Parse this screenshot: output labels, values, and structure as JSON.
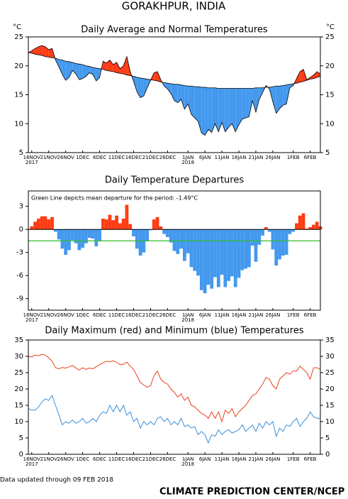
{
  "title": "GORAKHPUR, INDIA",
  "footer_left": "Data updated through 09 FEB 2018",
  "footer_right": "CLIMATE PREDICTION CENTER/NCEP",
  "chart_data": [
    {
      "type": "anomaly",
      "title": "Daily Average and Normal Temperatures",
      "y_unit": "°C",
      "categories": [
        null,
        "16NOV",
        null,
        null,
        null,
        null,
        "21NOV",
        null,
        null,
        null,
        null,
        "26NOV",
        null,
        null,
        null,
        null,
        "1DEC",
        null,
        null,
        null,
        null,
        "6DEC",
        null,
        null,
        null,
        null,
        "11DEC",
        null,
        null,
        null,
        null,
        "16DEC",
        null,
        null,
        null,
        null,
        "21DEC",
        null,
        null,
        null,
        null,
        "26DEC",
        null,
        null,
        null,
        null,
        null,
        "1JAN",
        null,
        null,
        null,
        null,
        "6JAN",
        null,
        null,
        null,
        null,
        "11JAN",
        null,
        null,
        null,
        null,
        "16JAN",
        null,
        null,
        null,
        null,
        "21JAN",
        null,
        null,
        null,
        null,
        "26JAN",
        null,
        null,
        null,
        null,
        null,
        "1FEB",
        null,
        null,
        null,
        null,
        "6FEB",
        null,
        null,
        null
      ],
      "category_years": [
        null,
        "2017",
        null,
        null,
        null,
        null,
        null,
        null,
        null,
        null,
        null,
        null,
        null,
        null,
        null,
        null,
        null,
        null,
        null,
        null,
        null,
        null,
        null,
        null,
        null,
        null,
        null,
        null,
        null,
        null,
        null,
        null,
        null,
        null,
        null,
        null,
        null,
        null,
        null,
        null,
        null,
        null,
        null,
        null,
        null,
        null,
        null,
        "2018",
        null,
        null,
        null,
        null,
        null,
        null,
        null,
        null,
        null,
        null,
        null,
        null,
        null,
        null,
        null,
        null,
        null,
        null,
        null,
        null,
        null,
        null,
        null,
        null,
        null,
        null,
        null,
        null,
        null,
        null,
        null,
        null,
        null,
        null,
        null,
        null,
        null,
        null,
        null
      ],
      "series": [
        {
          "color": "#000000",
          "values": [
            22.3,
            22.6,
            23.0,
            23.3,
            23.5,
            23.3,
            22.8,
            23.0,
            21.0,
            19.8,
            18.5,
            17.5,
            18.0,
            19.2,
            18.6,
            17.6,
            17.8,
            18.2,
            18.8,
            18.5,
            17.4,
            18.0,
            20.8,
            20.5,
            21.0,
            20.2,
            20.6,
            19.5,
            20.0,
            21.6,
            19.0,
            17.3,
            15.5,
            14.5,
            14.8,
            16.2,
            17.5,
            18.8,
            19.0,
            17.6,
            16.5,
            16.0,
            15.2,
            14.0,
            13.6,
            14.2,
            12.5,
            13.4,
            11.6,
            11.0,
            10.4,
            8.4,
            8.0,
            9.0,
            8.5,
            10.0,
            8.6,
            10.2,
            8.6,
            9.4,
            10.0,
            8.6,
            9.8,
            10.8,
            11.0,
            11.2,
            14.0,
            12.0,
            14.2,
            15.4,
            16.6,
            16.0,
            13.8,
            11.8,
            12.6,
            13.2,
            13.4,
            16.2,
            16.6,
            17.8,
            19.0,
            19.4,
            17.6,
            18.0,
            18.4,
            19.0,
            18.6
          ]
        },
        {
          "color": "#000000",
          "values": [
            22.3,
            22.2,
            22.0,
            21.9,
            21.8,
            21.6,
            21.5,
            21.4,
            21.3,
            21.1,
            21.0,
            20.8,
            20.7,
            20.6,
            20.4,
            20.3,
            20.2,
            20.0,
            19.9,
            19.7,
            19.6,
            19.5,
            19.4,
            19.2,
            19.1,
            19.0,
            18.8,
            18.7,
            18.6,
            18.4,
            18.3,
            18.2,
            18.0,
            17.9,
            17.8,
            17.7,
            17.6,
            17.5,
            17.4,
            17.2,
            17.1,
            17.0,
            16.9,
            16.8,
            16.8,
            16.7,
            16.6,
            16.5,
            16.5,
            16.4,
            16.4,
            16.3,
            16.3,
            16.2,
            16.2,
            16.2,
            16.1,
            16.1,
            16.1,
            16.1,
            16.1,
            16.1,
            16.1,
            16.1,
            16.1,
            16.1,
            16.1,
            16.2,
            16.2,
            16.2,
            16.3,
            16.3,
            16.4,
            16.5,
            16.5,
            16.6,
            16.7,
            16.8,
            16.9,
            17.0,
            17.2,
            17.3,
            17.5,
            17.7,
            17.8,
            18.0,
            18.2
          ]
        }
      ],
      "above_color": "#ff3c14",
      "below_color": "#4499ee",
      "ylim": [
        5,
        25
      ],
      "yticks": [
        5,
        10,
        15,
        20,
        25
      ],
      "right_axis": true
    },
    {
      "type": "bar",
      "title": "Daily Temperature Departures",
      "annotation": "Green Line depicts mean departure for the period: -1.49°C",
      "reference_line": {
        "value": -1.49,
        "color": "#33bb33"
      },
      "categories": [
        null,
        "16NOV",
        null,
        null,
        null,
        null,
        "21NOV",
        null,
        null,
        null,
        null,
        "26NOV",
        null,
        null,
        null,
        null,
        "1DEC",
        null,
        null,
        null,
        null,
        "6DEC",
        null,
        null,
        null,
        null,
        "11DEC",
        null,
        null,
        null,
        null,
        "16DEC",
        null,
        null,
        null,
        null,
        "21DEC",
        null,
        null,
        null,
        null,
        "26DEC",
        null,
        null,
        null,
        null,
        null,
        "1JAN",
        null,
        null,
        null,
        null,
        "6JAN",
        null,
        null,
        null,
        null,
        "11JAN",
        null,
        null,
        null,
        null,
        "16JAN",
        null,
        null,
        null,
        null,
        "21JAN",
        null,
        null,
        null,
        null,
        "26JAN",
        null,
        null,
        null,
        null,
        null,
        "1FEB",
        null,
        null,
        null,
        null,
        "6FEB",
        null,
        null,
        null
      ],
      "category_years": [
        null,
        "2017",
        null,
        null,
        null,
        null,
        null,
        null,
        null,
        null,
        null,
        null,
        null,
        null,
        null,
        null,
        null,
        null,
        null,
        null,
        null,
        null,
        null,
        null,
        null,
        null,
        null,
        null,
        null,
        null,
        null,
        null,
        null,
        null,
        null,
        null,
        null,
        null,
        null,
        null,
        null,
        null,
        null,
        null,
        null,
        null,
        null,
        "2018",
        null,
        null,
        null,
        null,
        null,
        null,
        null,
        null,
        null,
        null,
        null,
        null,
        null,
        null,
        null,
        null,
        null,
        null,
        null,
        null,
        null,
        null,
        null,
        null,
        null,
        null,
        null,
        null,
        null,
        null,
        null,
        null,
        null,
        null,
        null,
        null,
        null,
        null,
        null
      ],
      "values": [
        0.0,
        0.4,
        1.0,
        1.4,
        1.7,
        1.7,
        1.3,
        1.6,
        -0.3,
        -1.3,
        -2.5,
        -3.3,
        -2.7,
        -1.4,
        -1.8,
        -2.7,
        -2.4,
        -1.8,
        -1.1,
        -1.2,
        -2.2,
        -1.5,
        1.4,
        1.3,
        1.9,
        1.2,
        1.8,
        0.8,
        1.4,
        3.2,
        0.7,
        -0.9,
        -2.5,
        -3.4,
        -3.0,
        -1.5,
        -0.1,
        1.3,
        1.6,
        0.4,
        -0.6,
        -1.0,
        -1.7,
        -2.8,
        -3.2,
        -2.5,
        -4.1,
        -3.1,
        -4.9,
        -5.4,
        -6.0,
        -7.9,
        -8.3,
        -7.2,
        -7.7,
        -6.2,
        -7.5,
        -5.9,
        -7.5,
        -6.7,
        -6.1,
        -7.5,
        -6.3,
        -5.3,
        -5.1,
        -4.9,
        -2.1,
        -4.2,
        -2.0,
        -0.8,
        0.3,
        -0.3,
        -2.6,
        -4.7,
        -3.9,
        -3.4,
        -3.3,
        -0.6,
        -0.3,
        0.8,
        1.8,
        2.1,
        0.1,
        0.3,
        0.6,
        1.0,
        0.4
      ],
      "positive_color": "#ff3c14",
      "negative_color": "#4499ee",
      "ylim": [
        -10.5,
        5
      ],
      "yticks": [
        -9,
        -6,
        -3,
        0,
        3
      ],
      "zero_line": true,
      "right_axis": false
    },
    {
      "type": "line",
      "title": "Daily Maximum (red) and Minimum (blue) Temperatures",
      "categories": [
        null,
        "16NOV",
        null,
        null,
        null,
        null,
        "21NOV",
        null,
        null,
        null,
        null,
        "26NOV",
        null,
        null,
        null,
        null,
        "1DEC",
        null,
        null,
        null,
        null,
        "6DEC",
        null,
        null,
        null,
        null,
        "11DEC",
        null,
        null,
        null,
        null,
        "16DEC",
        null,
        null,
        null,
        null,
        "21DEC",
        null,
        null,
        null,
        null,
        "26DEC",
        null,
        null,
        null,
        null,
        null,
        "1JAN",
        null,
        null,
        null,
        null,
        "6JAN",
        null,
        null,
        null,
        null,
        "11JAN",
        null,
        null,
        null,
        null,
        "16JAN",
        null,
        null,
        null,
        null,
        "21JAN",
        null,
        null,
        null,
        null,
        "26JAN",
        null,
        null,
        null,
        null,
        null,
        "1FEB",
        null,
        null,
        null,
        null,
        "6FEB",
        null,
        null,
        null
      ],
      "category_years": [
        null,
        "2017",
        null,
        null,
        null,
        null,
        null,
        null,
        null,
        null,
        null,
        null,
        null,
        null,
        null,
        null,
        null,
        null,
        null,
        null,
        null,
        null,
        null,
        null,
        null,
        null,
        null,
        null,
        null,
        null,
        null,
        null,
        null,
        null,
        null,
        null,
        null,
        null,
        null,
        null,
        null,
        null,
        null,
        null,
        null,
        null,
        null,
        "2018",
        null,
        null,
        null,
        null,
        null,
        null,
        null,
        null,
        null,
        null,
        null,
        null,
        null,
        null,
        null,
        null,
        null,
        null,
        null,
        null,
        null,
        null,
        null,
        null,
        null,
        null,
        null,
        null,
        null,
        null,
        null,
        null,
        null,
        null,
        null,
        null,
        null,
        null,
        null
      ],
      "series": [
        {
          "color": "#e8401c",
          "values": [
            30,
            29.8,
            30.4,
            30.2,
            30.6,
            30.4,
            29.5,
            28.5,
            26.5,
            26.2,
            26.6,
            26.4,
            26.8,
            27.2,
            26.4,
            25.8,
            26.5,
            26,
            26.4,
            26.2,
            26.8,
            27.5,
            28,
            28.5,
            28.3,
            28.6,
            28.2,
            27.4,
            27.6,
            28.2,
            27,
            26,
            24,
            22,
            21.2,
            20.5,
            21,
            24,
            25.5,
            23,
            22,
            21.5,
            20,
            19,
            17.5,
            18.5,
            16.5,
            17.5,
            15,
            14.5,
            13.5,
            12.5,
            12,
            11,
            13,
            11,
            13,
            10,
            13.5,
            12.5,
            14,
            11.5,
            13,
            14,
            15,
            16.5,
            18,
            18.5,
            20,
            21.5,
            23.5,
            23,
            21,
            20,
            23,
            24,
            25,
            24.5,
            25.5,
            25.5,
            27,
            26,
            25,
            23,
            26.5,
            26.5,
            26
          ]
        },
        {
          "color": "#3a8fd8",
          "values": [
            14,
            13.5,
            13.5,
            14.5,
            16,
            17,
            16.5,
            18,
            15,
            12,
            9,
            10,
            9.5,
            10.5,
            9.5,
            10,
            11,
            9.5,
            10,
            11,
            10,
            12,
            13,
            12.5,
            15,
            13,
            15,
            13,
            15,
            12,
            13,
            10,
            11,
            8,
            10,
            9,
            10,
            9,
            11,
            11.5,
            10,
            11,
            9,
            10,
            9,
            11,
            8.5,
            9,
            8,
            8.5,
            6,
            7,
            6,
            3.5,
            6,
            5.5,
            7.5,
            6,
            7,
            7.5,
            6.5,
            7,
            7.5,
            9,
            7,
            8,
            9,
            7,
            9.5,
            8,
            10,
            9,
            10,
            5.5,
            8,
            7,
            9,
            8.5,
            10,
            11,
            8.5,
            10,
            11,
            13,
            11.5,
            11,
            11
          ]
        }
      ],
      "ylim": [
        0,
        35
      ],
      "yticks": [
        0,
        5,
        10,
        15,
        20,
        25,
        30,
        35
      ],
      "right_axis": true
    }
  ]
}
